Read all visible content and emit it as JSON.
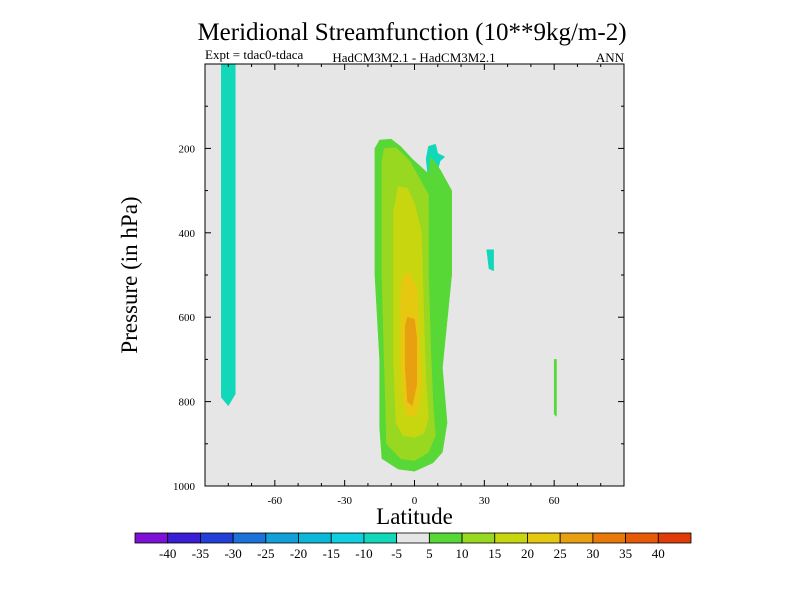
{
  "chart_data": {
    "type": "heatmap",
    "title": "Meridional Streamfunction (10**9kg/m-2)",
    "subtitle_left": "Expt = tdac0-tdaca",
    "subtitle_center": "HadCM3M2.1 - HadCM3M2.1",
    "subtitle_right": "ANN",
    "xlabel": "Latitude",
    "ylabel": "Pressure (in hPa)",
    "xlim": [
      -90,
      90
    ],
    "ylim": [
      1000,
      0
    ],
    "x_ticks": [
      -60,
      -30,
      0,
      30,
      60
    ],
    "x_tick_labels": [
      "-60",
      "-30",
      "0",
      "30",
      "60"
    ],
    "y_ticks": [
      200,
      400,
      600,
      800,
      1000
    ],
    "y_tick_labels": [
      "200",
      "400",
      "600",
      "800",
      "1000"
    ],
    "background_color": "#e6e6e6",
    "colorbar": {
      "bounds": [
        "-40",
        "-35",
        "-30",
        "-25",
        "-20",
        "-15",
        "-10",
        "-5",
        "5",
        "10",
        "15",
        "20",
        "25",
        "30",
        "35",
        "40"
      ],
      "colors": [
        "#7d12d6",
        "#3a1ed6",
        "#2240d8",
        "#1c72d8",
        "#12a0d8",
        "#0cb8d8",
        "#10cfe0",
        "#10d8b8",
        "#e6e6e6",
        "#58d836",
        "#98d820",
        "#c8d610",
        "#e6c810",
        "#e8a010",
        "#e87808",
        "#e65a08",
        "#e03c08"
      ]
    },
    "regions": [
      {
        "name": "negative-band-south",
        "level": "-10 to -5",
        "color": "#10d8b8",
        "points": [
          [
            -83,
            0
          ],
          [
            -77,
            0
          ],
          [
            -77,
            782
          ],
          [
            -80,
            810
          ],
          [
            -83,
            790
          ]
        ]
      },
      {
        "name": "negative-patch-upper",
        "level": "-10 to -5",
        "color": "#10d8b8",
        "points": [
          [
            5,
            225
          ],
          [
            6,
            195
          ],
          [
            9,
            190
          ],
          [
            10,
            212
          ],
          [
            13,
            220
          ],
          [
            11,
            230
          ],
          [
            9,
            270
          ],
          [
            6,
            277
          ]
        ]
      },
      {
        "name": "negative-patch-mid",
        "level": "-10 to -5",
        "color": "#10d8b8",
        "points": [
          [
            31,
            440
          ],
          [
            34,
            440
          ],
          [
            34,
            490
          ],
          [
            32,
            485
          ]
        ]
      },
      {
        "name": "positive-5-main",
        "level": "5 to 10",
        "color": "#58d836",
        "points": [
          [
            -17,
            200
          ],
          [
            -15,
            180
          ],
          [
            -10,
            178
          ],
          [
            -6,
            195
          ],
          [
            -1,
            225
          ],
          [
            6,
            260
          ],
          [
            7,
            220
          ],
          [
            11,
            250
          ],
          [
            16,
            300
          ],
          [
            16,
            500
          ],
          [
            12,
            720
          ],
          [
            14,
            850
          ],
          [
            12,
            920
          ],
          [
            8,
            945
          ],
          [
            0,
            965
          ],
          [
            -7,
            960
          ],
          [
            -14,
            935
          ],
          [
            -15,
            860
          ],
          [
            -15,
            700
          ],
          [
            -17,
            500
          ],
          [
            -17,
            300
          ]
        ]
      },
      {
        "name": "positive-5-ne",
        "level": "5 to 10",
        "color": "#58d836",
        "points": [
          [
            60,
            700
          ],
          [
            61,
            700
          ],
          [
            61,
            835
          ],
          [
            60,
            830
          ]
        ]
      },
      {
        "name": "positive-10",
        "level": "10 to 15",
        "color": "#98d820",
        "points": [
          [
            -14,
            230
          ],
          [
            -13,
            200
          ],
          [
            -8,
            198
          ],
          [
            -2,
            230
          ],
          [
            3,
            280
          ],
          [
            6,
            310
          ],
          [
            6,
            500
          ],
          [
            7,
            680
          ],
          [
            8,
            810
          ],
          [
            9,
            880
          ],
          [
            6,
            920
          ],
          [
            0,
            940
          ],
          [
            -6,
            935
          ],
          [
            -12,
            900
          ],
          [
            -13,
            700
          ],
          [
            -14,
            500
          ]
        ]
      },
      {
        "name": "positive-15",
        "level": "15 to 20",
        "color": "#c8d610",
        "points": [
          [
            -9,
            350
          ],
          [
            -7,
            290
          ],
          [
            -3,
            295
          ],
          [
            0,
            330
          ],
          [
            3,
            400
          ],
          [
            4,
            600
          ],
          [
            5,
            750
          ],
          [
            6,
            840
          ],
          [
            4,
            875
          ],
          [
            0,
            885
          ],
          [
            -5,
            880
          ],
          [
            -8,
            850
          ],
          [
            -9,
            700
          ],
          [
            -9,
            500
          ]
        ]
      },
      {
        "name": "positive-20",
        "level": "20 to 25",
        "color": "#e6c810",
        "points": [
          [
            -6,
            560
          ],
          [
            -5,
            500
          ],
          [
            -2,
            495
          ],
          [
            1,
            530
          ],
          [
            2,
            650
          ],
          [
            3,
            760
          ],
          [
            1,
            830
          ],
          [
            -3,
            835
          ],
          [
            -5,
            800
          ],
          [
            -6,
            700
          ]
        ]
      },
      {
        "name": "positive-25",
        "level": "25 to 30",
        "color": "#e8a010",
        "points": [
          [
            -4,
            620
          ],
          [
            -3,
            600
          ],
          [
            0,
            605
          ],
          [
            1,
            650
          ],
          [
            1,
            760
          ],
          [
            -1,
            810
          ],
          [
            -3,
            800
          ],
          [
            -4,
            720
          ]
        ]
      }
    ]
  }
}
